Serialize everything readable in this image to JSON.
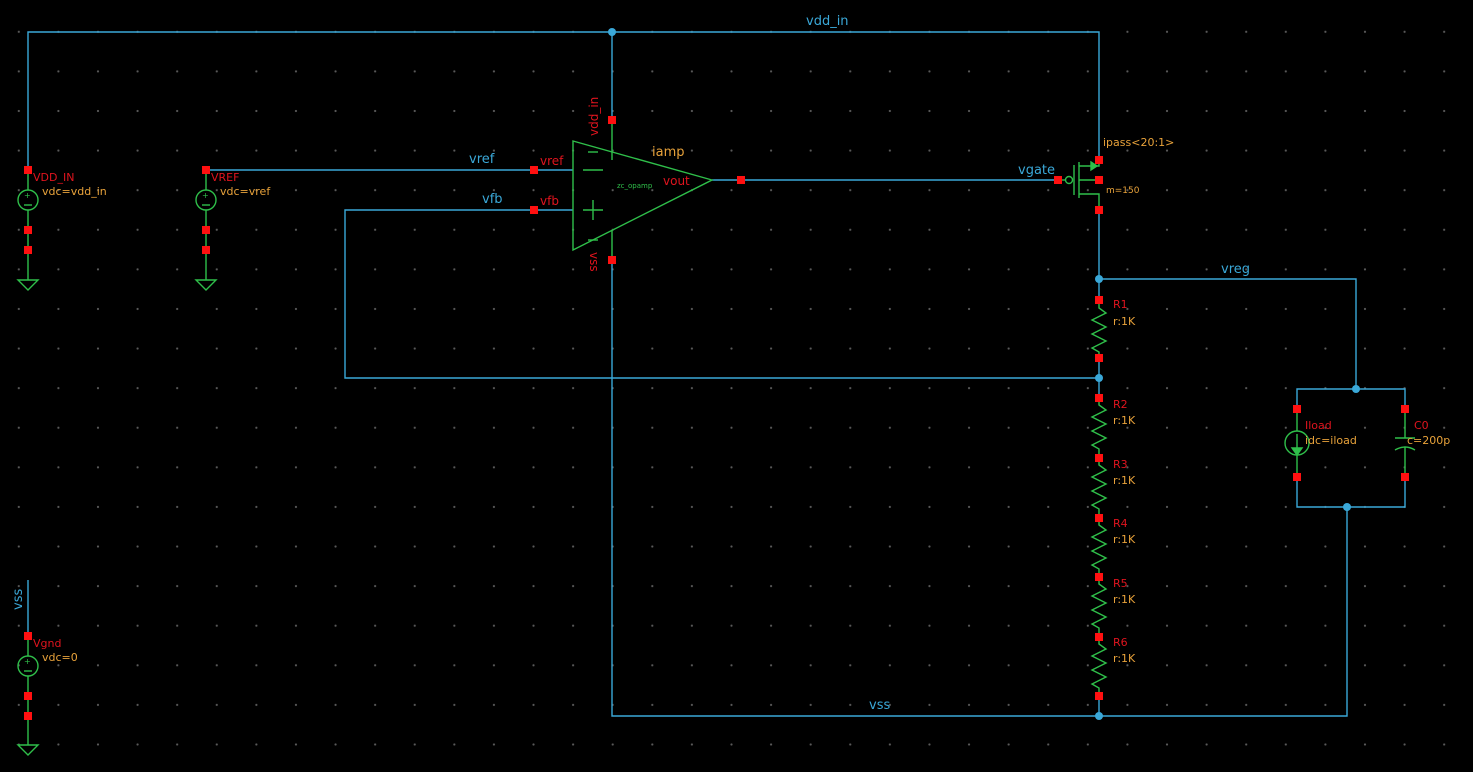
{
  "nets": {
    "vdd_in": "vdd_in",
    "vref": "vref",
    "vfb": "vfb",
    "vgate": "vgate",
    "vreg": "vreg",
    "vss": "vss",
    "vss_stub": "vss"
  },
  "opamp": {
    "instance": "iamp",
    "cell": "zc_opamp",
    "pin_vdd": "vdd_in",
    "pin_vss": "vss",
    "pin_vref": "vref",
    "pin_vfb": "vfb",
    "pin_vout": "vout"
  },
  "sources": {
    "vdd_in": {
      "name": "VDD_IN",
      "param": "vdc=vdd_in"
    },
    "vref": {
      "name": "VREF",
      "param": "vdc=vref"
    },
    "vgnd": {
      "name": "Vgnd",
      "param": "vdc=0"
    }
  },
  "pass_transistor": {
    "name": "ipass<20:1>",
    "multiplier": "m=150"
  },
  "resistors": [
    {
      "name": "R1",
      "value": "r:1K"
    },
    {
      "name": "R2",
      "value": "r:1K"
    },
    {
      "name": "R3",
      "value": "r:1K"
    },
    {
      "name": "R4",
      "value": "r:1K"
    },
    {
      "name": "R5",
      "value": "r:1K"
    },
    {
      "name": "R6",
      "value": "r:1K"
    }
  ],
  "load_current": {
    "name": "Iload",
    "param": "idc=iload"
  },
  "load_cap": {
    "name": "C0",
    "param": "c=200p"
  },
  "colors": {
    "wire": "#3aa8d8",
    "component": "#2fbf4a",
    "pin": "#ff1010",
    "param": "#e8a23a"
  }
}
